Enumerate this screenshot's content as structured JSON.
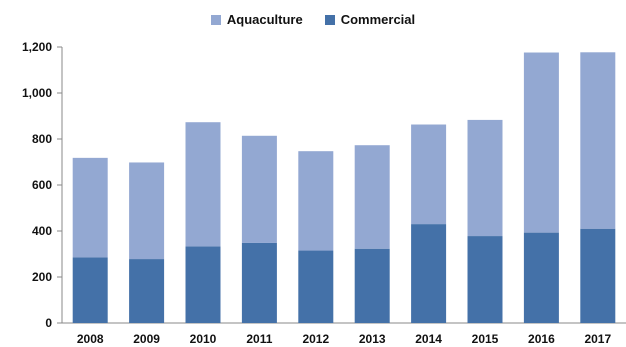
{
  "legend": {
    "items": [
      {
        "label": "Aquaculture",
        "color": "#93a8d2"
      },
      {
        "label": "Commercial",
        "color": "#4471a8"
      }
    ]
  },
  "chart_data": {
    "type": "bar",
    "stacked": true,
    "categories": [
      "2008",
      "2009",
      "2010",
      "2011",
      "2012",
      "2013",
      "2014",
      "2015",
      "2016",
      "2017"
    ],
    "series": [
      {
        "name": "Commercial",
        "color": "#4471a8",
        "values": [
          285,
          278,
          333,
          348,
          315,
          323,
          430,
          378,
          393,
          410
        ]
      },
      {
        "name": "Aquaculture",
        "color": "#93a8d2",
        "values": [
          433,
          420,
          540,
          466,
          432,
          450,
          433,
          505,
          783,
          767
        ]
      }
    ],
    "ylim": [
      0,
      1200
    ],
    "yticks": [
      0,
      200,
      400,
      600,
      800,
      1000,
      1200
    ],
    "ytick_labels": [
      "0",
      "200",
      "400",
      "600",
      "800",
      "1,000",
      "1,200"
    ],
    "grid": false,
    "legend_position": "top-center",
    "title": "",
    "xlabel": "",
    "ylabel": ""
  }
}
